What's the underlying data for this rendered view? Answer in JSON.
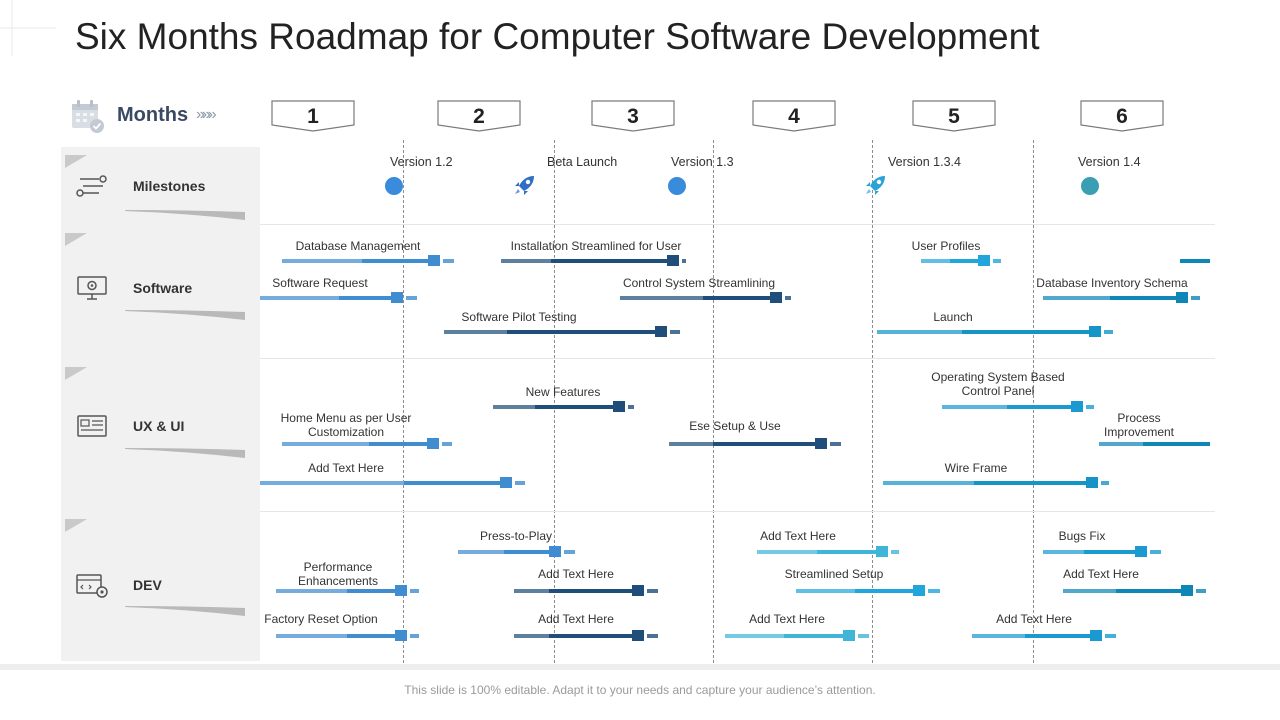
{
  "title": "Six Months Roadmap for Computer Software Development",
  "months_label": "Months",
  "months_chevrons": "»»»",
  "months": [
    "1",
    "2",
    "3",
    "4",
    "5",
    "6"
  ],
  "categories": [
    {
      "label": "Milestones",
      "icon": "route-icon"
    },
    {
      "label": "Software",
      "icon": "monitor-gear-icon"
    },
    {
      "label": "UX & UI",
      "icon": "interface-icon"
    },
    {
      "label": "DEV",
      "icon": "code-settings-icon"
    }
  ],
  "milestones": [
    {
      "label": "Version 1.2",
      "kind": "dot",
      "color": "#3a8bdc"
    },
    {
      "label": "Beta Launch",
      "kind": "rocket",
      "color": "#2f6fc4"
    },
    {
      "label": "Version 1.3",
      "kind": "dot",
      "color": "#3a8bdc"
    },
    {
      "label": "Version 1.3.4",
      "kind": "rocket",
      "color": "#2aa3d8"
    },
    {
      "label": "Version 1.4",
      "kind": "dot",
      "color": "#3a9fb3"
    }
  ],
  "tasks": [
    {
      "label": "Database Management",
      "color": "#3f8cd0"
    },
    {
      "label": "Installation Streamlined for User",
      "color": "#1f4e7a"
    },
    {
      "label": "User Profiles",
      "color": "#21a6dc"
    },
    {
      "label": "",
      "color": "#0e86b8"
    },
    {
      "label": "Software Request",
      "color": "#3f8cd0"
    },
    {
      "label": "Control System Streamlining",
      "color": "#1f4e7a"
    },
    {
      "label": "Database Inventory Schema",
      "color": "#0e86b8"
    },
    {
      "label": "Software Pilot Testing",
      "color": "#1f4e7a"
    },
    {
      "label": "Launch",
      "color": "#1594c8"
    },
    {
      "label": "New Features",
      "color": "#1f4e7a"
    },
    {
      "label": "Operating System Based\nControl Panel",
      "color": "#1a9ad1"
    },
    {
      "label": "Home Menu as per User\nCustomization",
      "color": "#3f8cd0"
    },
    {
      "label": "Ese Setup & Use",
      "color": "#1f4e7a"
    },
    {
      "label": "Process\nImprovement",
      "color": "#0e86b8"
    },
    {
      "label": "Add Text Here",
      "color": "#3f8cd0"
    },
    {
      "label": "Wire Frame",
      "color": "#1594c8"
    },
    {
      "label": "Press-to-Play",
      "color": "#3f8cd0"
    },
    {
      "label": "Add Text Here",
      "color": "#3fb6d8"
    },
    {
      "label": "Bugs Fix",
      "color": "#1a9ad1"
    },
    {
      "label": "Performance\nEnhancements",
      "color": "#3f8cd0"
    },
    {
      "label": "Add Text Here",
      "color": "#1f4e7a"
    },
    {
      "label": "Streamlined Setup",
      "color": "#21a6dc"
    },
    {
      "label": "Add Text Here",
      "color": "#0e86b8"
    },
    {
      "label": "Factory Reset Option",
      "color": "#3f8cd0"
    },
    {
      "label": "Add Text Here",
      "color": "#1f4e7a"
    },
    {
      "label": "Add Text Here",
      "color": "#3fb6d8"
    },
    {
      "label": "Add Text Here",
      "color": "#1a9ad1"
    }
  ],
  "footer": "This slide is 100% editable. Adapt it to your needs and capture your audience’s attention."
}
